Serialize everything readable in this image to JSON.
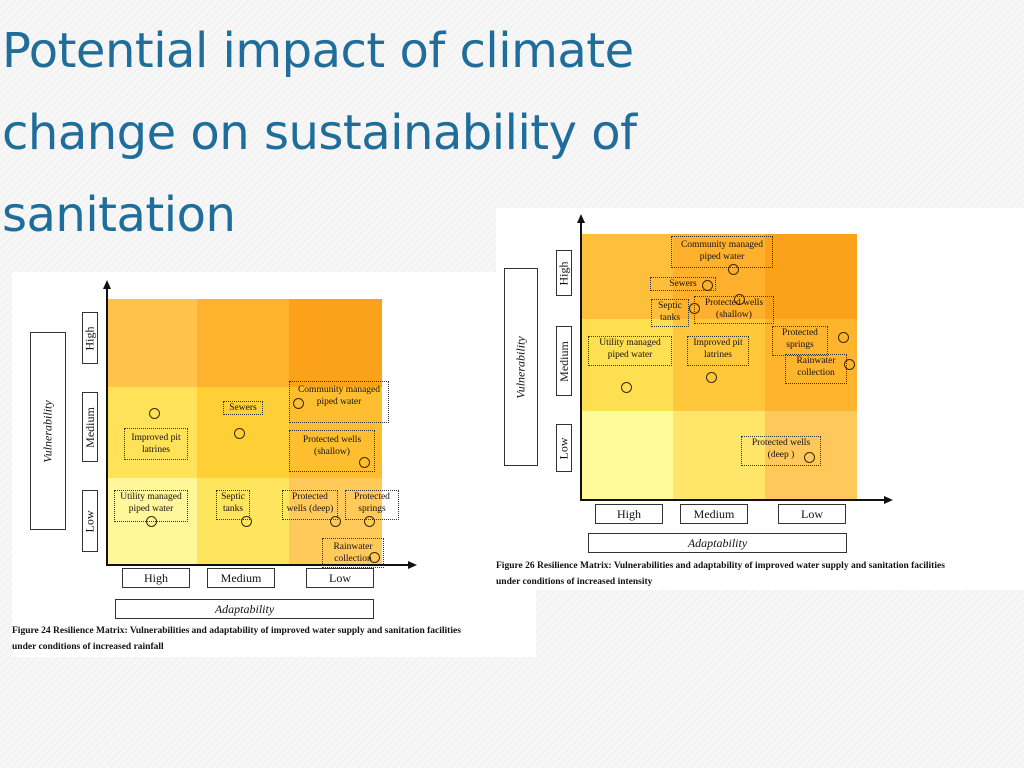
{
  "slide": {
    "title": "Potential impact of climate change on sustainability of sanitation"
  },
  "colors": {
    "title": "#1f6d9b",
    "grid_light": "#fff79a",
    "grid_mid_light": "#ffe25a",
    "grid_mid": "#ffd23a",
    "grid_mid_dark": "#ffbe3c",
    "grid_dark": "#fca81a"
  },
  "figure_left": {
    "vertical_axis_title": "Vulnerability",
    "vertical_levels": [
      "High",
      "Medium",
      "Low"
    ],
    "horizontal_axis_title": "Adaptability",
    "horizontal_levels": [
      "High",
      "Medium",
      "Low"
    ],
    "items": {
      "improved_pit_latrines": "Improved pit\nlatrines",
      "sewers": "Sewers",
      "community_managed": "Community managed\npiped water",
      "protected_wells_shallow": "Protected wells\n(shallow)",
      "utility_managed": "Utility managed\npiped water",
      "septic_tanks": "Septic\ntanks",
      "protected_wells_deep": "Protected\nwells (deep)",
      "protected_springs": "Protected\nsprings",
      "rainwater_collection": "Rainwater\ncollection"
    },
    "caption_line1": "Figure 24 Resilience Matrix: Vulnerabilities and adaptability of improved water supply and sanitation facilities",
    "caption_line2": "under conditions of increased rainfall"
  },
  "figure_right": {
    "vertical_axis_title": "Vulnerability",
    "vertical_levels": [
      "High",
      "Medium",
      "Low"
    ],
    "horizontal_axis_title": "Adaptability",
    "horizontal_levels": [
      "High",
      "Medium",
      "Low"
    ],
    "items": {
      "community_managed": "Community managed\npiped water",
      "sewers": "Sewers",
      "septic_tanks": "Septic\ntanks",
      "protected_wells_shallow": "Protected wells\n(shallow)",
      "utility_managed": "Utility managed\npiped water",
      "improved_pit_latrines": "Improved pit\nlatrines",
      "protected_springs": "Protected\nsprings",
      "rainwater_collection": "Rainwater\ncollection",
      "protected_wells_deep": "Protected wells\n(deep )"
    },
    "caption_line1": "Figure 26 Resilience Matrix: Vulnerabilities and adaptability of improved water supply and sanitation facilities",
    "caption_line2": "under conditions of increased intensity"
  }
}
